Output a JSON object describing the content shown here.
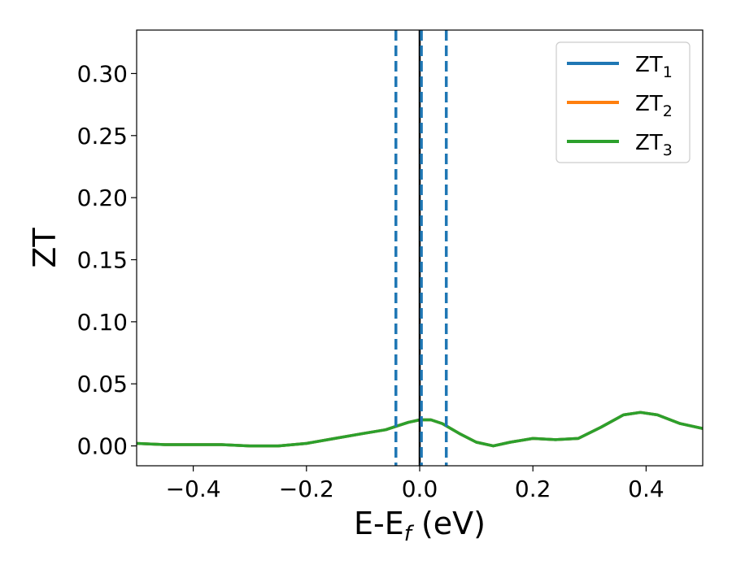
{
  "chart_data": {
    "type": "line",
    "xlabel": {
      "main": "E-E",
      "sub": "f",
      "tail": " (eV)"
    },
    "ylabel": "ZT",
    "xlim": [
      -0.5,
      0.5
    ],
    "ylim": [
      -0.016,
      0.335
    ],
    "x_ticks": [
      -0.4,
      -0.2,
      0.0,
      0.2,
      0.4
    ],
    "x_tick_labels": [
      "−0.4",
      "−0.2",
      "0.0",
      "0.2",
      "0.4"
    ],
    "y_ticks": [
      0.0,
      0.05,
      0.1,
      0.15,
      0.2,
      0.25,
      0.3
    ],
    "y_tick_labels": [
      "0.00",
      "0.05",
      "0.10",
      "0.15",
      "0.20",
      "0.25",
      "0.30"
    ],
    "grid": false,
    "legend_position": "top-right",
    "vlines": [
      {
        "x": -0.042,
        "style": "dashed",
        "color": "#1f77b4"
      },
      {
        "x": 0.0,
        "style": "solid",
        "color": "#000000"
      },
      {
        "x": 0.003,
        "style": "dashed",
        "color": "#1f77b4"
      },
      {
        "x": 0.047,
        "style": "dashed",
        "color": "#1f77b4"
      }
    ],
    "x": [
      -0.5,
      -0.45,
      -0.4,
      -0.35,
      -0.3,
      -0.25,
      -0.2,
      -0.15,
      -0.1,
      -0.06,
      -0.04,
      -0.02,
      0.0,
      0.02,
      0.04,
      0.07,
      0.1,
      0.13,
      0.16,
      0.2,
      0.24,
      0.28,
      0.32,
      0.36,
      0.39,
      0.42,
      0.46,
      0.5
    ],
    "series": [
      {
        "name": "ZT",
        "sub": "1",
        "color": "#1f77b4",
        "values": [
          0.002,
          0.001,
          0.001,
          0.001,
          0.0,
          0.0,
          0.002,
          0.006,
          0.01,
          0.013,
          0.016,
          0.019,
          0.021,
          0.021,
          0.018,
          0.01,
          0.003,
          0.0,
          0.003,
          0.006,
          0.005,
          0.006,
          0.015,
          0.025,
          0.027,
          0.025,
          0.018,
          0.014
        ]
      },
      {
        "name": "ZT",
        "sub": "2",
        "color": "#ff7f0e",
        "values": [
          0.002,
          0.001,
          0.001,
          0.001,
          0.0,
          0.0,
          0.002,
          0.006,
          0.01,
          0.013,
          0.016,
          0.019,
          0.021,
          0.021,
          0.018,
          0.01,
          0.003,
          0.0,
          0.003,
          0.006,
          0.005,
          0.006,
          0.015,
          0.025,
          0.027,
          0.025,
          0.018,
          0.014
        ]
      },
      {
        "name": "ZT",
        "sub": "3",
        "color": "#2ca02c",
        "values": [
          0.002,
          0.001,
          0.001,
          0.001,
          0.0,
          0.0,
          0.002,
          0.006,
          0.01,
          0.013,
          0.016,
          0.019,
          0.021,
          0.021,
          0.018,
          0.01,
          0.003,
          0.0,
          0.003,
          0.006,
          0.005,
          0.006,
          0.015,
          0.025,
          0.027,
          0.025,
          0.018,
          0.014
        ]
      }
    ]
  }
}
